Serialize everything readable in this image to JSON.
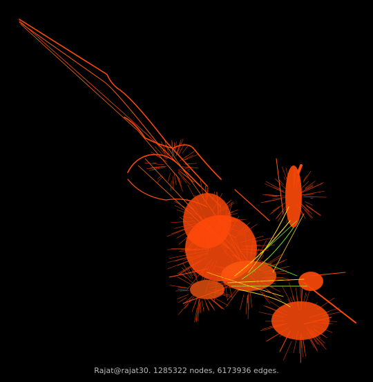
{
  "caption": "Rajat@rajat30. 1285322 nodes, 6173936 edges.",
  "colors": {
    "background": "#000000",
    "edge_primary": "#ff4a0a",
    "edge_secondary": "#ff7a00",
    "edge_tertiary": "#ffd21a",
    "edge_minor": "#7dea2a",
    "caption_text": "#b8b8b8"
  }
}
